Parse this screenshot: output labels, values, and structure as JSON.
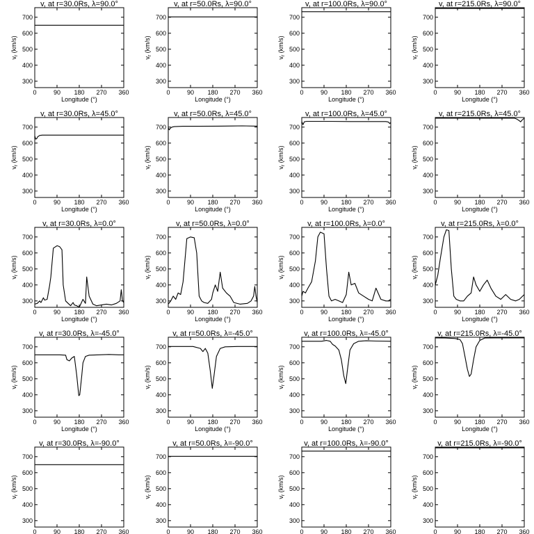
{
  "figure": {
    "xlabel": "Longitude (°)",
    "ylabel": "v",
    "ylabel_sub": "r",
    "ylabel_suffix": " (km/s)",
    "x_ticks": [
      "0",
      "90",
      "180",
      "270",
      "360"
    ],
    "y_ticks": [
      "300",
      "400",
      "500",
      "600",
      "700"
    ]
  },
  "chart_data": [
    {
      "type": "line",
      "title": "v, at r=30.0Rs, λ=90.0°",
      "r": "30.0Rs",
      "lat": "90.0°",
      "xlim": [
        0,
        360
      ],
      "ylim": [
        260,
        760
      ],
      "x": [
        0,
        360
      ],
      "y": [
        650,
        650
      ]
    },
    {
      "type": "line",
      "title": "v, at r=50.0Rs, λ=90.0°",
      "r": "50.0Rs",
      "lat": "90.0°",
      "xlim": [
        0,
        360
      ],
      "ylim": [
        260,
        760
      ],
      "x": [
        0,
        360
      ],
      "y": [
        702,
        702
      ]
    },
    {
      "type": "line",
      "title": "v, at r=100.0Rs, λ=90.0°",
      "r": "100.0Rs",
      "lat": "90.0°",
      "xlim": [
        0,
        360
      ],
      "ylim": [
        260,
        760
      ],
      "x": [
        0,
        360
      ],
      "y": [
        735,
        735
      ]
    },
    {
      "type": "line",
      "title": "v, at r=215.0Rs, λ=90.0°",
      "r": "215.0Rs",
      "lat": "90.0°",
      "xlim": [
        0,
        360
      ],
      "ylim": [
        260,
        760
      ],
      "x": [
        0,
        360
      ],
      "y": [
        755,
        755
      ]
    },
    {
      "type": "line",
      "title": "v, at r=30.0Rs, λ=45.0°",
      "r": "30.0Rs",
      "lat": "45.0°",
      "xlim": [
        0,
        360
      ],
      "ylim": [
        260,
        760
      ],
      "x": [
        0,
        4,
        8,
        12,
        20,
        30,
        60,
        120,
        200,
        300,
        360
      ],
      "y": [
        645,
        625,
        628,
        640,
        648,
        650,
        650,
        650,
        650,
        650,
        650
      ]
    },
    {
      "type": "line",
      "title": "v, at r=50.0Rs, λ=45.0°",
      "r": "50.0Rs",
      "lat": "45.0°",
      "xlim": [
        0,
        360
      ],
      "ylim": [
        260,
        760
      ],
      "x": [
        0,
        4,
        8,
        15,
        25,
        60,
        120,
        200,
        260,
        300,
        360
      ],
      "y": [
        695,
        683,
        692,
        700,
        703,
        705,
        705,
        706,
        707,
        708,
        706
      ]
    },
    {
      "type": "line",
      "title": "v, at r=100.0Rs, λ=45.0°",
      "r": "100.0Rs",
      "lat": "45.0°",
      "xlim": [
        0,
        360
      ],
      "ylim": [
        260,
        760
      ],
      "x": [
        0,
        5,
        10,
        20,
        100,
        200,
        340,
        350,
        356,
        360
      ],
      "y": [
        735,
        715,
        733,
        736,
        736,
        735,
        735,
        732,
        722,
        730
      ]
    },
    {
      "type": "line",
      "title": "v, at r=215.0Rs, λ=45.0°",
      "r": "215.0Rs",
      "lat": "45.0°",
      "xlim": [
        0,
        360
      ],
      "ylim": [
        260,
        760
      ],
      "x": [
        0,
        100,
        200,
        320,
        330,
        338,
        345,
        352,
        360
      ],
      "y": [
        756,
        756,
        756,
        756,
        750,
        742,
        733,
        745,
        756
      ]
    },
    {
      "type": "line",
      "title": "v, at r=30.0Rs, λ=0.0°",
      "r": "30.0Rs",
      "lat": "0.0°",
      "xlim": [
        0,
        360
      ],
      "ylim": [
        260,
        760
      ],
      "x": [
        0,
        10,
        20,
        25,
        35,
        40,
        50,
        60,
        65,
        75,
        90,
        100,
        110,
        115,
        125,
        135,
        145,
        155,
        160,
        170,
        180,
        195,
        205,
        210,
        220,
        235,
        250,
        270,
        290,
        310,
        330,
        345,
        350,
        355,
        360
      ],
      "y": [
        280,
        285,
        300,
        290,
        320,
        305,
        310,
        395,
        450,
        630,
        645,
        640,
        620,
        400,
        300,
        285,
        270,
        290,
        275,
        270,
        260,
        310,
        285,
        450,
        330,
        280,
        270,
        275,
        280,
        275,
        285,
        300,
        370,
        300,
        290
      ]
    },
    {
      "type": "line",
      "title": "v, at r=50.0Rs, λ=0.0°",
      "r": "50.0Rs",
      "lat": "0.0°",
      "xlim": [
        0,
        360
      ],
      "ylim": [
        260,
        760
      ],
      "x": [
        0,
        10,
        20,
        30,
        40,
        50,
        60,
        75,
        90,
        105,
        115,
        125,
        135,
        145,
        160,
        175,
        180,
        190,
        200,
        210,
        220,
        235,
        250,
        265,
        290,
        320,
        335,
        345,
        350,
        355,
        360
      ],
      "y": [
        280,
        300,
        330,
        310,
        350,
        340,
        420,
        690,
        700,
        695,
        600,
        330,
        300,
        290,
        285,
        310,
        350,
        400,
        360,
        480,
        380,
        350,
        330,
        290,
        280,
        285,
        300,
        330,
        390,
        330,
        290
      ]
    },
    {
      "type": "line",
      "title": "v, at r=100.0Rs, λ=0.0°",
      "r": "100.0Rs",
      "lat": "0.0°",
      "xlim": [
        0,
        360
      ],
      "ylim": [
        260,
        760
      ],
      "x": [
        0,
        5,
        15,
        25,
        40,
        55,
        65,
        75,
        90,
        100,
        110,
        120,
        135,
        150,
        165,
        180,
        190,
        200,
        215,
        230,
        250,
        270,
        285,
        300,
        320,
        340,
        350,
        360
      ],
      "y": [
        330,
        360,
        350,
        380,
        420,
        550,
        700,
        730,
        720,
        500,
        330,
        300,
        310,
        300,
        290,
        340,
        480,
        400,
        410,
        350,
        330,
        310,
        300,
        380,
        310,
        300,
        300,
        310
      ]
    },
    {
      "type": "line",
      "title": "v, at r=215.0Rs, λ=0.0°",
      "r": "215.0Rs",
      "lat": "0.0°",
      "xlim": [
        0,
        360
      ],
      "ylim": [
        260,
        760
      ],
      "x": [
        0,
        10,
        20,
        35,
        45,
        55,
        65,
        75,
        85,
        100,
        115,
        130,
        145,
        155,
        165,
        180,
        195,
        210,
        225,
        245,
        265,
        285,
        305,
        325,
        340,
        360
      ],
      "y": [
        400,
        460,
        560,
        700,
        745,
        740,
        500,
        330,
        310,
        300,
        300,
        330,
        350,
        450,
        400,
        360,
        400,
        430,
        380,
        330,
        310,
        340,
        310,
        300,
        310,
        340
      ]
    },
    {
      "type": "line",
      "title": "v, at r=30.0Rs, λ=-45.0°",
      "r": "30.0Rs",
      "lat": "-45.0°",
      "xlim": [
        0,
        360
      ],
      "ylim": [
        260,
        760
      ],
      "x": [
        0,
        100,
        125,
        130,
        140,
        150,
        160,
        170,
        178,
        182,
        190,
        195,
        205,
        220,
        260,
        300,
        340,
        360
      ],
      "y": [
        650,
        650,
        648,
        620,
        612,
        630,
        640,
        520,
        395,
        400,
        520,
        600,
        640,
        648,
        650,
        652,
        650,
        650
      ]
    },
    {
      "type": "line",
      "title": "v, at r=50.0Rs, λ=-45.0°",
      "r": "50.0Rs",
      "lat": "-45.0°",
      "xlim": [
        0,
        360
      ],
      "ylim": [
        260,
        760
      ],
      "x": [
        0,
        100,
        130,
        140,
        150,
        160,
        170,
        178,
        185,
        195,
        210,
        230,
        280,
        360
      ],
      "y": [
        702,
        702,
        690,
        670,
        690,
        660,
        550,
        440,
        520,
        640,
        690,
        700,
        702,
        702
      ]
    },
    {
      "type": "line",
      "title": "v, at r=100.0Rs, λ=-45.0°",
      "r": "100.0Rs",
      "lat": "-45.0°",
      "xlim": [
        0,
        360
      ],
      "ylim": [
        260,
        760
      ],
      "x": [
        0,
        80,
        100,
        115,
        125,
        135,
        150,
        160,
        170,
        178,
        185,
        195,
        210,
        230,
        260,
        300,
        360
      ],
      "y": [
        735,
        735,
        740,
        735,
        715,
        705,
        680,
        620,
        520,
        470,
        560,
        680,
        720,
        735,
        738,
        736,
        735
      ]
    },
    {
      "type": "line",
      "title": "v, at r=215.0Rs, λ=-45.0°",
      "r": "215.0Rs",
      "lat": "-45.0°",
      "xlim": [
        0,
        360
      ],
      "ylim": [
        260,
        760
      ],
      "x": [
        0,
        40,
        80,
        100,
        110,
        120,
        130,
        138,
        145,
        155,
        165,
        180,
        200,
        240,
        300,
        360
      ],
      "y": [
        756,
        755,
        752,
        745,
        720,
        640,
        560,
        515,
        530,
        620,
        700,
        740,
        755,
        756,
        756,
        756
      ]
    },
    {
      "type": "line",
      "title": "v, at r=30.0Rs, λ=-90.0°",
      "r": "30.0Rs",
      "lat": "-90.0°",
      "xlim": [
        0,
        360
      ],
      "ylim": [
        260,
        760
      ],
      "x": [
        0,
        360
      ],
      "y": [
        650,
        650
      ]
    },
    {
      "type": "line",
      "title": "v, at r=50.0Rs, λ=-90.0°",
      "r": "50.0Rs",
      "lat": "-90.0°",
      "xlim": [
        0,
        360
      ],
      "ylim": [
        260,
        760
      ],
      "x": [
        0,
        360
      ],
      "y": [
        702,
        702
      ]
    },
    {
      "type": "line",
      "title": "v, at r=100.0Rs, λ=-90.0°",
      "r": "100.0Rs",
      "lat": "-90.0°",
      "xlim": [
        0,
        360
      ],
      "ylim": [
        260,
        760
      ],
      "x": [
        0,
        360
      ],
      "y": [
        735,
        735
      ]
    },
    {
      "type": "line",
      "title": "v, at r=215.0Rs, λ=-90.0°",
      "r": "215.0Rs",
      "lat": "-90.0°",
      "xlim": [
        0,
        360
      ],
      "ylim": [
        260,
        760
      ],
      "x": [
        0,
        360
      ],
      "y": [
        755,
        755
      ]
    }
  ]
}
